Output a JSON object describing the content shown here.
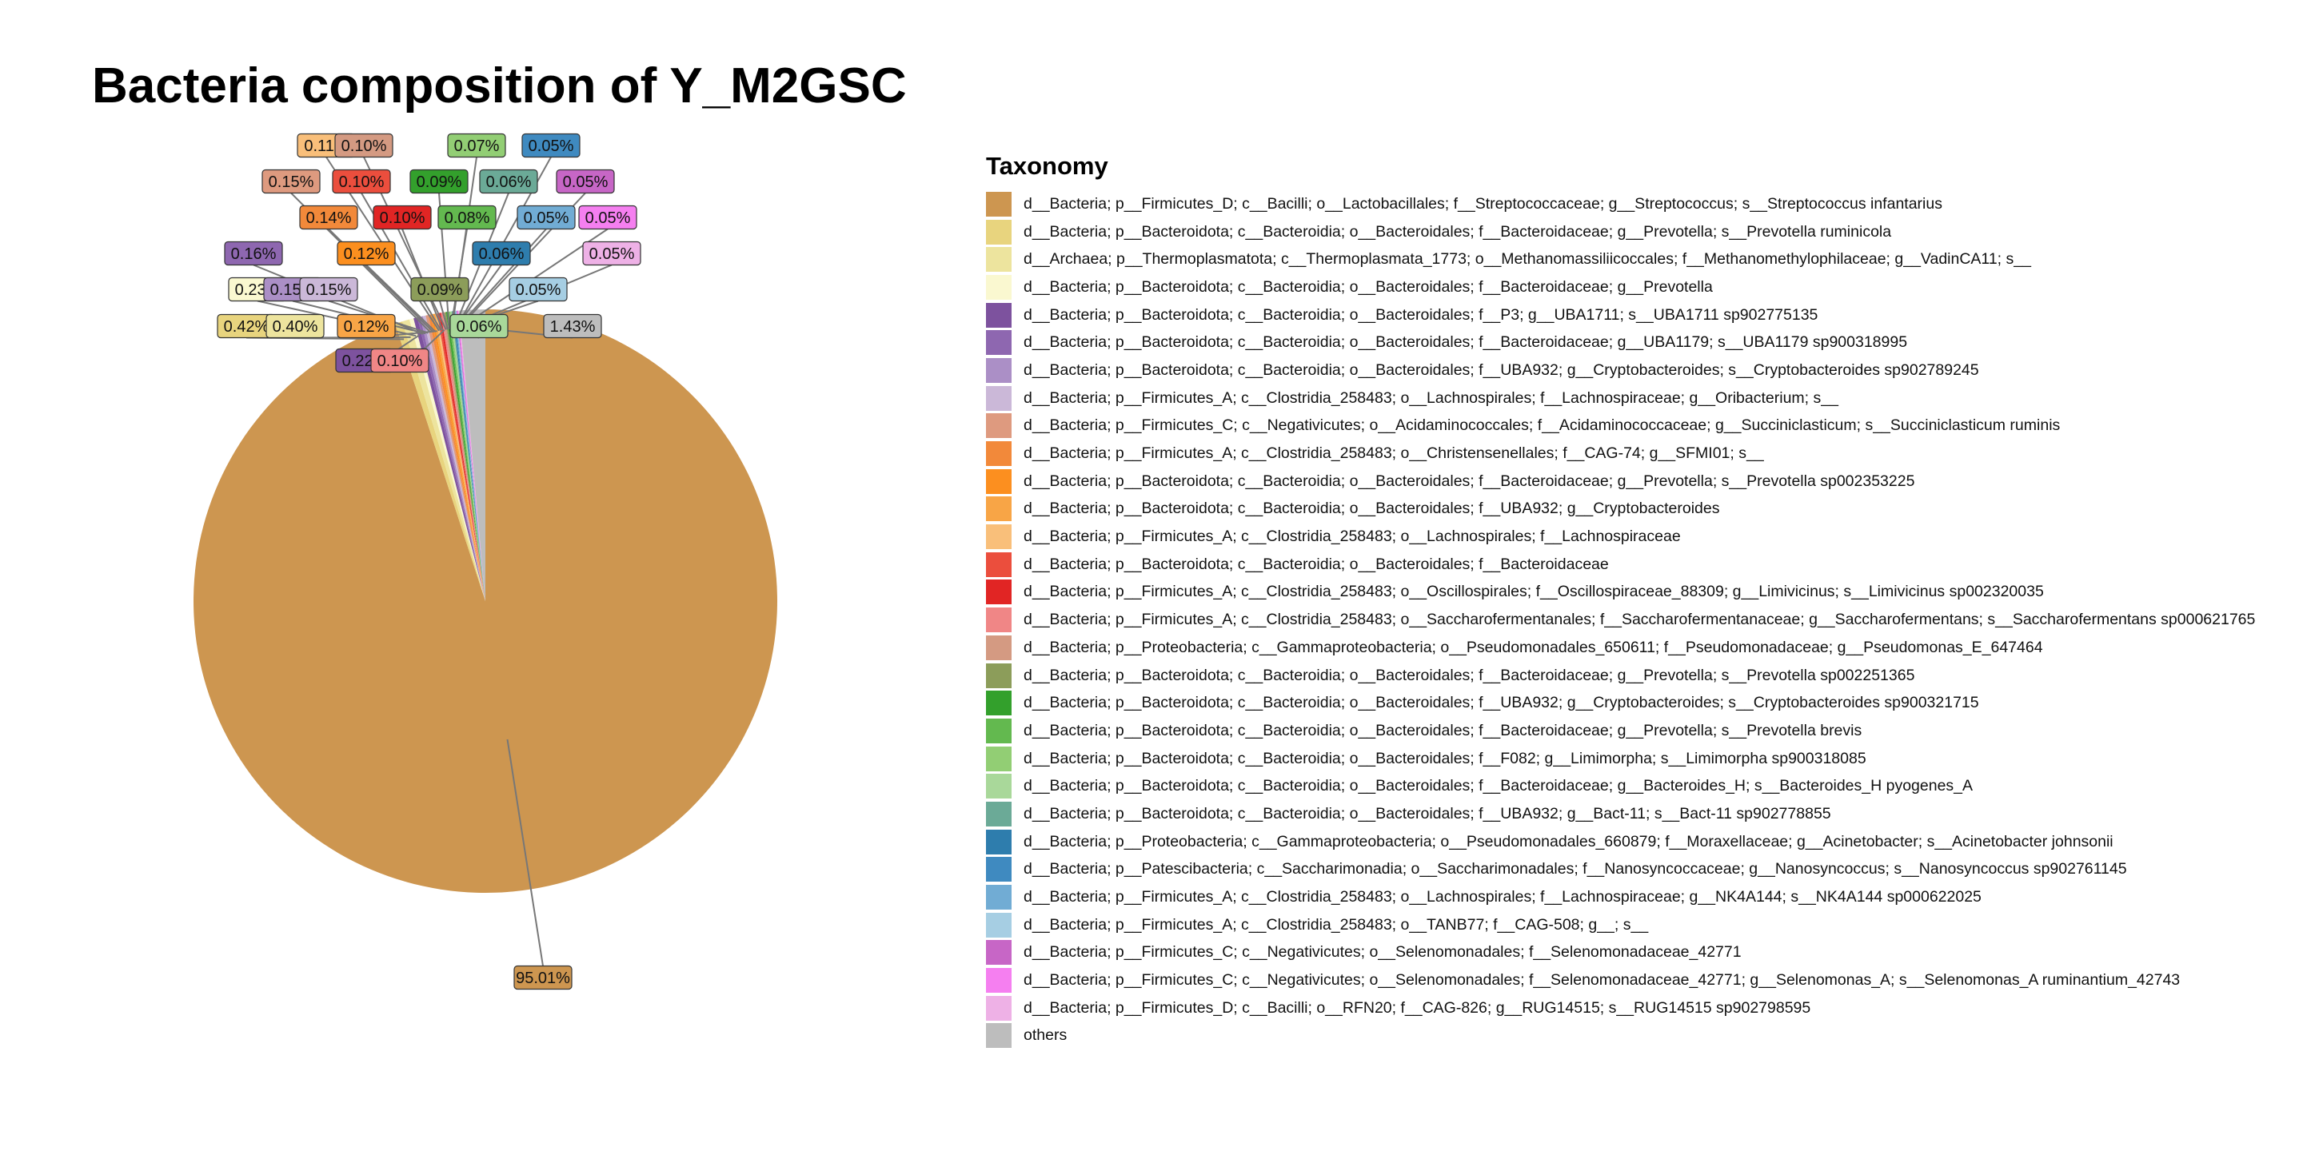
{
  "chart_data": {
    "type": "pie",
    "title": "Bacteria composition of Y_M2GSC",
    "legend_title": "Taxonomy",
    "legend_position": "right",
    "slices": [
      {
        "label": "d__Bacteria; p__Firmicutes_D; c__Bacilli; o__Lactobacillales; f__Streptococcaceae; g__Streptococcus; s__Streptococcus infantarius",
        "value": 95.01,
        "display": "95.01%",
        "color": "#CD9650"
      },
      {
        "label": "d__Bacteria; p__Bacteroidota; c__Bacteroidia; o__Bacteroidales; f__Bacteroidaceae; g__Prevotella; s__Prevotella ruminicola",
        "value": 0.42,
        "display": "0.42%",
        "color": "#E8D47E"
      },
      {
        "label": "d__Archaea; p__Thermoplasmatota; c__Thermoplasmata_1773; o__Methanomassiliicoccales; f__Methanomethylophilaceae; g__VadinCA11; s__",
        "value": 0.4,
        "display": "0.40%",
        "color": "#EDE49E"
      },
      {
        "label": "d__Bacteria; p__Bacteroidota; c__Bacteroidia; o__Bacteroidales; f__Bacteroidaceae; g__Prevotella",
        "value": 0.23,
        "display": "0.23%",
        "color": "#FAF8D0"
      },
      {
        "label": "d__Bacteria; p__Bacteroidota; c__Bacteroidia; o__Bacteroidales; f__P3; g__UBA1711; s__UBA1711 sp902775135",
        "value": 0.22,
        "display": "0.22%",
        "color": "#7D529E"
      },
      {
        "label": "d__Bacteria; p__Bacteroidota; c__Bacteroidia; o__Bacteroidales; f__Bacteroidaceae; g__UBA1179; s__UBA1179 sp900318995",
        "value": 0.16,
        "display": "0.16%",
        "color": "#8E67B0"
      },
      {
        "label": "d__Bacteria; p__Bacteroidota; c__Bacteroidia; o__Bacteroidales; f__UBA932; g__Cryptobacteroides; s__Cryptobacteroides sp902789245",
        "value": 0.15,
        "display": "0.15%",
        "color": "#AB8FC6"
      },
      {
        "label": "d__Bacteria; p__Firmicutes_A; c__Clostridia_258483; o__Lachnospirales; f__Lachnospiraceae; g__Oribacterium; s__",
        "value": 0.15,
        "display": "0.15%",
        "color": "#CBB8D8"
      },
      {
        "label": "d__Bacteria; p__Firmicutes_C; c__Negativicutes; o__Acidaminococcales; f__Acidaminococcaceae; g__Succiniclasticum; s__Succiniclasticum ruminis",
        "value": 0.15,
        "display": "0.15%",
        "color": "#DE9A7F"
      },
      {
        "label": "d__Bacteria; p__Firmicutes_A; c__Clostridia_258483; o__Christensenellales; f__CAG-74; g__SFMI01; s__",
        "value": 0.14,
        "display": "0.14%",
        "color": "#F2893A"
      },
      {
        "label": "d__Bacteria; p__Bacteroidota; c__Bacteroidia; o__Bacteroidales; f__Bacteroidaceae; g__Prevotella; s__Prevotella sp002353225",
        "value": 0.12,
        "display": "0.12%",
        "color": "#FC8F1F"
      },
      {
        "label": "d__Bacteria; p__Bacteroidota; c__Bacteroidia; o__Bacteroidales; f__UBA932; g__Cryptobacteroides",
        "value": 0.12,
        "display": "0.12%",
        "color": "#F8A546"
      },
      {
        "label": "d__Bacteria; p__Firmicutes_A; c__Clostridia_258483; o__Lachnospirales; f__Lachnospiraceae",
        "value": 0.11,
        "display": "0.11%",
        "color": "#F9BF7A"
      },
      {
        "label": "d__Bacteria; p__Bacteroidota; c__Bacteroidia; o__Bacteroidales; f__Bacteroidaceae",
        "value": 0.1,
        "display": "0.10%",
        "color": "#EB4E3D"
      },
      {
        "label": "d__Bacteria; p__Firmicutes_A; c__Clostridia_258483; o__Oscillospirales; f__Oscillospiraceae_88309; g__Limivicinus; s__Limivicinus sp002320035",
        "value": 0.1,
        "display": "0.10%",
        "color": "#E12524"
      },
      {
        "label": "d__Bacteria; p__Firmicutes_A; c__Clostridia_258483; o__Saccharofermentanales; f__Saccharofermentanaceae; g__Saccharofermentans; s__Saccharofermentans sp000621765",
        "value": 0.1,
        "display": "0.10%",
        "color": "#F08686"
      },
      {
        "label": "d__Bacteria; p__Proteobacteria; c__Gammaproteobacteria; o__Pseudomonadales_650611; f__Pseudomonadaceae; g__Pseudomonas_E_647464",
        "value": 0.1,
        "display": "0.10%",
        "color": "#D49A82"
      },
      {
        "label": "d__Bacteria; p__Bacteroidota; c__Bacteroidia; o__Bacteroidales; f__Bacteroidaceae; g__Prevotella; s__Prevotella sp002251365",
        "value": 0.09,
        "display": "0.09%",
        "color": "#8C9D5A"
      },
      {
        "label": "d__Bacteria; p__Bacteroidota; c__Bacteroidia; o__Bacteroidales; f__UBA932; g__Cryptobacteroides; s__Cryptobacteroides sp900321715",
        "value": 0.09,
        "display": "0.09%",
        "color": "#33A02C"
      },
      {
        "label": "d__Bacteria; p__Bacteroidota; c__Bacteroidia; o__Bacteroidales; f__Bacteroidaceae; g__Prevotella; s__Prevotella brevis",
        "value": 0.08,
        "display": "0.08%",
        "color": "#63B94F"
      },
      {
        "label": "d__Bacteria; p__Bacteroidota; c__Bacteroidia; o__Bacteroidales; f__F082; g__Limimorpha; s__Limimorpha sp900318085",
        "value": 0.07,
        "display": "0.07%",
        "color": "#92CE74"
      },
      {
        "label": "d__Bacteria; p__Bacteroidota; c__Bacteroidia; o__Bacteroidales; f__Bacteroidaceae; g__Bacteroides_H; s__Bacteroides_H pyogenes_A",
        "value": 0.06,
        "display": "0.06%",
        "color": "#A9D89A"
      },
      {
        "label": "d__Bacteria; p__Bacteroidota; c__Bacteroidia; o__Bacteroidales; f__UBA932; g__Bact-11; s__Bact-11 sp902778855",
        "value": 0.06,
        "display": "0.06%",
        "color": "#6BAA97"
      },
      {
        "label": "d__Bacteria; p__Proteobacteria; c__Gammaproteobacteria; o__Pseudomonadales_660879; f__Moraxellaceae; g__Acinetobacter; s__Acinetobacter johnsonii",
        "value": 0.06,
        "display": "0.06%",
        "color": "#2E7DAD"
      },
      {
        "label": "d__Bacteria; p__Patescibacteria; c__Saccharimonadia; o__Saccharimonadales; f__Nanosyncoccaceae; g__Nanosyncoccus; s__Nanosyncoccus sp902761145",
        "value": 0.05,
        "display": "0.05%",
        "color": "#3F8AC0"
      },
      {
        "label": "d__Bacteria; p__Firmicutes_A; c__Clostridia_258483; o__Lachnospirales; f__Lachnospiraceae; g__NK4A144; s__NK4A144 sp000622025",
        "value": 0.05,
        "display": "0.05%",
        "color": "#71ACD4"
      },
      {
        "label": "d__Bacteria; p__Firmicutes_A; c__Clostridia_258483; o__TANB77; f__CAG-508; g__; s__",
        "value": 0.05,
        "display": "0.05%",
        "color": "#A6CEE3"
      },
      {
        "label": "d__Bacteria; p__Firmicutes_C; c__Negativicutes; o__Selenomonadales; f__Selenomonadaceae_42771",
        "value": 0.05,
        "display": "0.05%",
        "color": "#C766C6"
      },
      {
        "label": "d__Bacteria; p__Firmicutes_C; c__Negativicutes; o__Selenomonadales; f__Selenomonadaceae_42771; g__Selenomonas_A; s__Selenomonas_A ruminantium_42743",
        "value": 0.05,
        "display": "0.05%",
        "color": "#F57FF0"
      },
      {
        "label": "d__Bacteria; p__Firmicutes_D; c__Bacilli; o__RFN20; f__CAG-826; g__RUG14515; s__RUG14515 sp902798595",
        "value": 0.05,
        "display": "0.05%",
        "color": "#EEB1E6"
      },
      {
        "label": "others",
        "value": 1.43,
        "display": "1.43%",
        "color": "#BDBDBD"
      }
    ]
  }
}
